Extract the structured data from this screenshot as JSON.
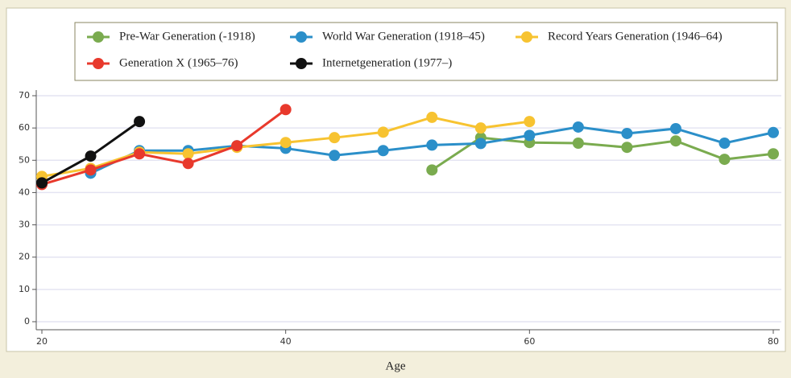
{
  "chart_data": {
    "type": "line",
    "xlabel": "Age",
    "x": [
      20,
      24,
      28,
      32,
      36,
      40,
      44,
      48,
      52,
      56,
      60,
      64,
      68,
      72,
      76,
      80
    ],
    "xlim": [
      20,
      80
    ],
    "xticks": [
      20,
      40,
      60,
      80
    ],
    "ylim": [
      0,
      70
    ],
    "yticks": [
      0,
      10,
      20,
      30,
      40,
      50,
      60,
      70
    ],
    "grid": true,
    "series": [
      {
        "name": "Pre-War Generation (-1918)",
        "color": "#7aab4f",
        "values": [
          null,
          null,
          null,
          null,
          null,
          null,
          null,
          null,
          47,
          57,
          55.5,
          55.3,
          54,
          56,
          50.3,
          52
        ]
      },
      {
        "name": "World War Generation (1918–45)",
        "color": "#2b8fc9",
        "values": [
          null,
          46,
          53,
          53,
          54.5,
          53.7,
          51.5,
          53,
          54.7,
          55.2,
          57.7,
          60.3,
          58.3,
          59.8,
          55.3,
          58.6
        ]
      },
      {
        "name": "Record Years Generation (1946–64)",
        "color": "#f7c331",
        "values": [
          45,
          47.5,
          52.5,
          52,
          54,
          55.5,
          57,
          58.7,
          63.3,
          60,
          62,
          null,
          null,
          null,
          null,
          null
        ]
      },
      {
        "name": "Generation X (1965–76)",
        "color": "#e8392c",
        "values": [
          42.5,
          47,
          52,
          49,
          54.5,
          65.7,
          null,
          null,
          null,
          null,
          null,
          null,
          null,
          null,
          null,
          null
        ]
      },
      {
        "name": "Internetgeneration (1977–)",
        "color": "#111111",
        "values": [
          43,
          51.3,
          62,
          null,
          null,
          null,
          null,
          null,
          null,
          null,
          null,
          null,
          null,
          null,
          null,
          null
        ]
      }
    ]
  }
}
